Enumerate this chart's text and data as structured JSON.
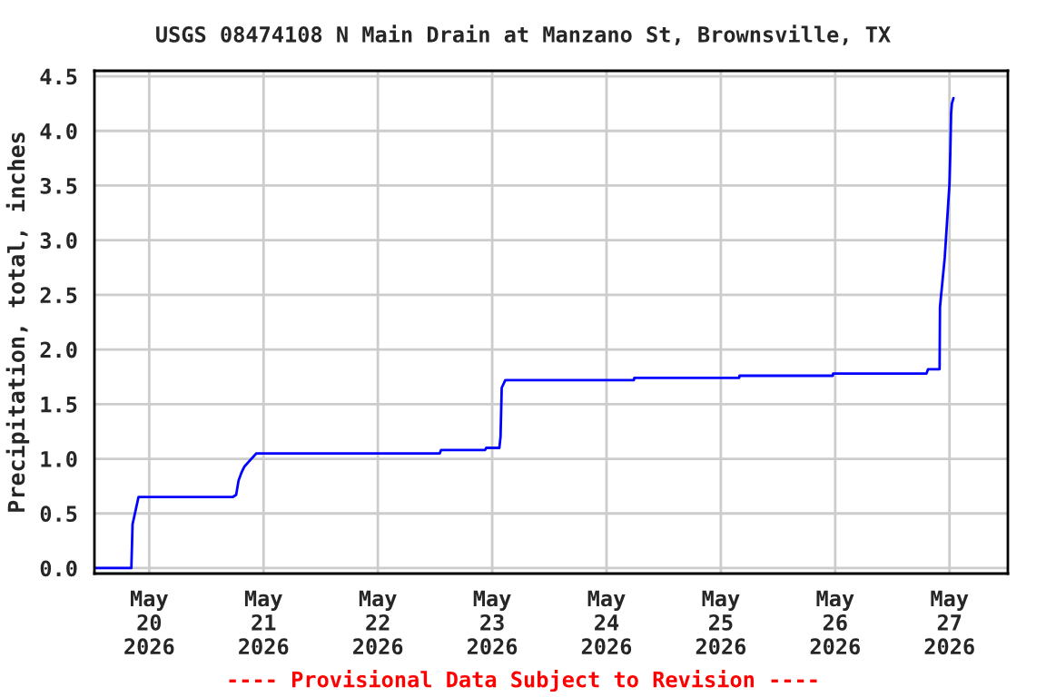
{
  "chart_data": {
    "type": "line",
    "title": "USGS 08474108 N Main Drain at Manzano St, Brownsville, TX",
    "ylabel": "Precipitation, total, inches",
    "annotations": [
      "---- Provisional Data Subject to Revision ----"
    ],
    "series": [
      {
        "color": "#0000ff",
        "x": [
          "2026-05-19T12:45",
          "2026-05-19T20:15",
          "2026-05-19T20:30",
          "2026-05-19T21:00",
          "2026-05-19T21:45",
          "2026-05-20T17:30",
          "2026-05-20T18:15",
          "2026-05-20T18:45",
          "2026-05-20T19:20",
          "2026-05-20T20:00",
          "2026-05-20T20:50",
          "2026-05-20T22:30",
          "2026-05-22T13:00",
          "2026-05-22T13:15",
          "2026-05-22T22:30",
          "2026-05-22T22:45",
          "2026-05-23T01:30",
          "2026-05-23T01:45",
          "2026-05-23T02:00",
          "2026-05-23T02:45",
          "2026-05-24T05:45",
          "2026-05-24T05:50",
          "2026-05-25T03:50",
          "2026-05-25T03:55",
          "2026-05-25T23:30",
          "2026-05-25T23:35",
          "2026-05-26T19:10",
          "2026-05-26T19:30",
          "2026-05-26T21:55",
          "2026-05-26T22:00",
          "2026-05-26T23:00",
          "2026-05-27T00:00",
          "2026-05-27T00:10",
          "2026-05-27T00:20",
          "2026-05-27T00:30",
          "2026-05-27T00:50"
        ],
        "values": [
          0.0,
          0.0,
          0.4,
          0.5,
          0.65,
          0.65,
          0.67,
          0.8,
          0.87,
          0.93,
          0.97,
          1.05,
          1.05,
          1.08,
          1.08,
          1.1,
          1.1,
          1.2,
          1.65,
          1.72,
          1.72,
          1.74,
          1.74,
          1.76,
          1.76,
          1.78,
          1.78,
          1.82,
          1.82,
          2.39,
          2.84,
          3.52,
          3.8,
          4.16,
          4.25,
          4.3
        ]
      }
    ],
    "xlim": [
      "2026-05-19T12:30",
      "2026-05-27T12:15"
    ],
    "xticks": [
      {
        "value": "2026-05-20",
        "label": "May\n20\n2026"
      },
      {
        "value": "2026-05-21",
        "label": "May\n21\n2026"
      },
      {
        "value": "2026-05-22",
        "label": "May\n22\n2026"
      },
      {
        "value": "2026-05-23",
        "label": "May\n23\n2026"
      },
      {
        "value": "2026-05-24",
        "label": "May\n24\n2026"
      },
      {
        "value": "2026-05-25",
        "label": "May\n25\n2026"
      },
      {
        "value": "2026-05-26",
        "label": "May\n26\n2026"
      },
      {
        "value": "2026-05-27",
        "label": "May\n27\n2026"
      }
    ],
    "ylim": [
      -0.05,
      4.55
    ],
    "yticks": [
      {
        "value": 0,
        "label": "0.0"
      },
      {
        "value": 0.5,
        "label": "0.5"
      },
      {
        "value": 1,
        "label": "1.0"
      },
      {
        "value": 1.5,
        "label": "1.5"
      },
      {
        "value": 2,
        "label": "2.0"
      },
      {
        "value": 2.5,
        "label": "2.5"
      },
      {
        "value": 3,
        "label": "3.0"
      },
      {
        "value": 3.5,
        "label": "3.5"
      },
      {
        "value": 4,
        "label": "4.0"
      },
      {
        "value": 4.5,
        "label": "4.5"
      }
    ],
    "grid": true
  }
}
